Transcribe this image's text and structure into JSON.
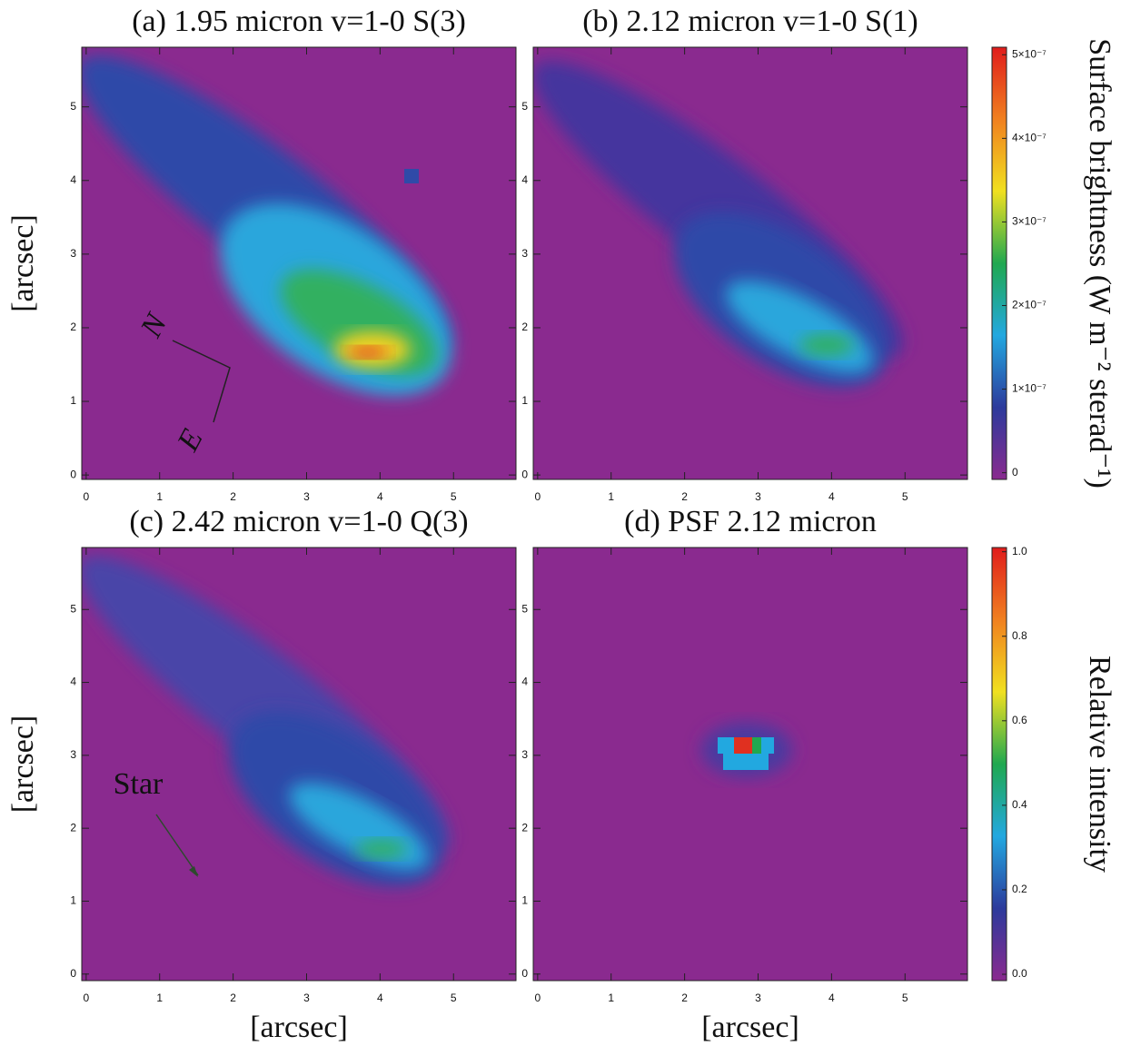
{
  "chart_data": [
    {
      "type": "image",
      "title": "(a) 1.95 micron v=1-0 S(3)",
      "ylabel": "[arcsec]",
      "xlim": [
        -0.06,
        5.85
      ],
      "ylim": [
        -0.06,
        5.81
      ],
      "xticks": [
        0,
        1,
        2,
        3,
        4,
        5
      ],
      "yticks": [
        0,
        1,
        2,
        3,
        4,
        5
      ],
      "annotations": [
        "N",
        "E"
      ]
    },
    {
      "type": "image",
      "title": "(b) 2.12 micron v=1-0 S(1)",
      "xlim": [
        -0.06,
        5.85
      ],
      "ylim": [
        -0.06,
        5.81
      ],
      "xticks": [
        0,
        1,
        2,
        3,
        4,
        5
      ],
      "yticks": [
        0,
        1,
        2,
        3,
        4,
        5
      ]
    },
    {
      "type": "image",
      "title": "(c) 2.42 micron v=1-0 Q(3)",
      "ylabel": "[arcsec]",
      "xlabel": "[arcsec]",
      "xlim": [
        -0.06,
        5.85
      ],
      "ylim": [
        -0.09,
        5.85
      ],
      "xticks": [
        0,
        1,
        2,
        3,
        4,
        5
      ],
      "yticks": [
        0,
        1,
        2,
        3,
        4,
        5
      ],
      "annotations": [
        "Star"
      ]
    },
    {
      "type": "image",
      "title": "(d) PSF 2.12 micron",
      "xlabel": "[arcsec]",
      "xlim": [
        -0.06,
        5.85
      ],
      "ylim": [
        -0.09,
        5.85
      ],
      "xticks": [
        0,
        1,
        2,
        3,
        4,
        5
      ],
      "yticks": [
        0,
        1,
        2,
        3,
        4,
        5
      ]
    },
    {
      "type": "colorbar",
      "label": "Surface brightness (W m⁻² sterad⁻¹)",
      "ylim": [
        -8e-09,
        5.09e-07
      ],
      "yticks": [
        0,
        {
          "value": 1e-07,
          "label": "1×10⁻⁷"
        },
        {
          "value": 2e-07,
          "label": "2×10⁻⁷"
        },
        {
          "value": 3e-07,
          "label": "3×10⁻⁷"
        },
        {
          "value": 4e-07,
          "label": "4×10⁻⁷"
        },
        {
          "value": 5e-07,
          "label": "5×10⁻⁷"
        }
      ],
      "colors": [
        "#8a2a8f",
        "#2c3a9c",
        "#22a8e0",
        "#20a850",
        "#f0e020",
        "#f08020",
        "#e01c1c"
      ]
    },
    {
      "type": "colorbar",
      "label": "Relative intensity",
      "ylim": [
        -0.015,
        1.01
      ],
      "yticks": [
        {
          "value": 0,
          "label": "0.0"
        },
        0.2,
        0.4,
        0.6,
        0.8,
        {
          "value": 1,
          "label": "1.0"
        }
      ],
      "colors": [
        "#8a2a8f",
        "#2c3a9c",
        "#22a8e0",
        "#20a850",
        "#f0e020",
        "#f08020",
        "#e01c1c"
      ]
    }
  ]
}
